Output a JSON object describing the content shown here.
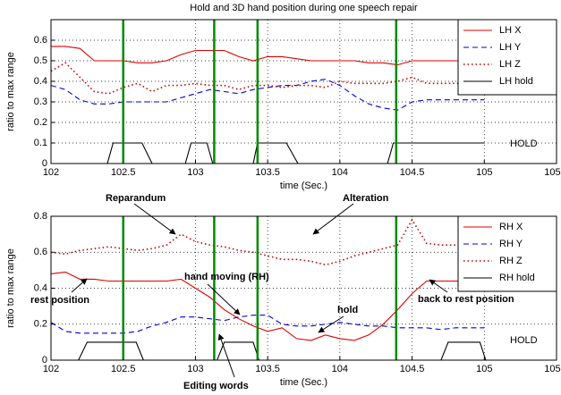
{
  "chart_data": [
    {
      "type": "line",
      "title": "Hold and 3D hand position during one speech repair",
      "xlabel": "time (Sec.)",
      "ylabel": "ratio to max range",
      "x": [
        102,
        102.1,
        102.2,
        102.3,
        102.4,
        102.5,
        102.6,
        102.7,
        102.8,
        102.9,
        103,
        103.1,
        103.2,
        103.3,
        103.4,
        103.5,
        103.6,
        103.7,
        103.8,
        103.9,
        104,
        104.1,
        104.2,
        104.3,
        104.4,
        104.5,
        104.6,
        104.7,
        104.8,
        104.9,
        105
      ],
      "xlim": [
        102,
        105.5
      ],
      "xticks": [
        102,
        102.5,
        103,
        103.5,
        104,
        104.5,
        105,
        105.5
      ],
      "ylim": [
        0,
        0.7
      ],
      "yticks": [
        0,
        0.1,
        0.2,
        0.3,
        0.4,
        0.5,
        0.6
      ],
      "grid": true,
      "legend": "upper right",
      "series": [
        {
          "name": "LH X",
          "color": "#e00000",
          "dash": "solid",
          "values": [
            0.57,
            0.57,
            0.56,
            0.5,
            0.5,
            0.5,
            0.49,
            0.49,
            0.5,
            0.53,
            0.55,
            0.55,
            0.55,
            0.52,
            0.5,
            0.52,
            0.52,
            0.51,
            0.5,
            0.5,
            0.5,
            0.5,
            0.49,
            0.49,
            0.48,
            0.5,
            0.5,
            0.5,
            0.5,
            0.5,
            0.5
          ]
        },
        {
          "name": "LH Y",
          "color": "#0000e0",
          "dash": "dashed",
          "values": [
            0.38,
            0.36,
            0.31,
            0.29,
            0.29,
            0.3,
            0.3,
            0.3,
            0.3,
            0.32,
            0.34,
            0.36,
            0.35,
            0.34,
            0.36,
            0.37,
            0.38,
            0.38,
            0.4,
            0.41,
            0.38,
            0.33,
            0.29,
            0.27,
            0.26,
            0.3,
            0.31,
            0.31,
            0.31,
            0.31,
            0.31
          ]
        },
        {
          "name": "LH Z",
          "color": "#c00000",
          "dash": "dotted",
          "values": [
            0.45,
            0.49,
            0.42,
            0.35,
            0.34,
            0.37,
            0.39,
            0.35,
            0.38,
            0.38,
            0.39,
            0.38,
            0.38,
            0.36,
            0.38,
            0.38,
            0.37,
            0.38,
            0.38,
            0.37,
            0.4,
            0.39,
            0.39,
            0.39,
            0.4,
            0.42,
            0.39,
            0.39,
            0.39,
            0.39,
            0.39
          ]
        },
        {
          "name": "LH hold",
          "color": "#000000",
          "dash": "solid",
          "x": [
            102.39,
            102.43,
            102.63,
            102.7,
            102.93,
            102.97,
            103.08,
            103.12,
            103.4,
            103.43,
            103.63,
            103.71,
            104.33,
            104.37,
            105
          ],
          "values": [
            0,
            0.1,
            0.1,
            0,
            0,
            0.1,
            0.1,
            0,
            0,
            0.1,
            0.1,
            0,
            0,
            0.1,
            0.1
          ]
        }
      ],
      "vlines": {
        "color": "#008a00",
        "x": [
          102.5,
          103.13,
          103.43,
          104.39
        ]
      },
      "annotations": [
        "HOLD"
      ]
    },
    {
      "type": "line",
      "xlabel": "time (Sec.)",
      "ylabel": "ratio to max range",
      "x": [
        102,
        102.1,
        102.2,
        102.3,
        102.4,
        102.5,
        102.6,
        102.7,
        102.8,
        102.9,
        103,
        103.1,
        103.2,
        103.3,
        103.4,
        103.5,
        103.6,
        103.7,
        103.8,
        103.9,
        104,
        104.1,
        104.2,
        104.3,
        104.4,
        104.5,
        104.6,
        104.7,
        104.8,
        104.9,
        105
      ],
      "xlim": [
        102,
        105.5
      ],
      "xticks": [
        102,
        102.5,
        103,
        103.5,
        104,
        104.5,
        105,
        105.5
      ],
      "ylim": [
        0,
        0.8
      ],
      "yticks": [
        0,
        0.2,
        0.4,
        0.6,
        0.8
      ],
      "grid": true,
      "legend": "upper right",
      "series": [
        {
          "name": "RH X",
          "color": "#e00000",
          "dash": "solid",
          "values": [
            0.48,
            0.49,
            0.45,
            0.45,
            0.44,
            0.44,
            0.44,
            0.44,
            0.44,
            0.45,
            0.4,
            0.35,
            0.28,
            0.23,
            0.19,
            0.16,
            0.18,
            0.12,
            0.11,
            0.14,
            0.12,
            0.11,
            0.14,
            0.2,
            0.28,
            0.37,
            0.44,
            0.44,
            0.44,
            0.44,
            0.44
          ]
        },
        {
          "name": "RH Y",
          "color": "#0000e0",
          "dash": "dashed",
          "values": [
            0.21,
            0.16,
            0.15,
            0.15,
            0.15,
            0.15,
            0.16,
            0.19,
            0.21,
            0.24,
            0.24,
            0.23,
            0.22,
            0.24,
            0.25,
            0.25,
            0.2,
            0.19,
            0.19,
            0.2,
            0.21,
            0.2,
            0.19,
            0.19,
            0.18,
            0.18,
            0.18,
            0.17,
            0.18,
            0.18,
            0.18
          ]
        },
        {
          "name": "RH Z",
          "color": "#c00000",
          "dash": "dotted",
          "values": [
            0.6,
            0.59,
            0.61,
            0.62,
            0.63,
            0.62,
            0.61,
            0.62,
            0.64,
            0.7,
            0.66,
            0.64,
            0.63,
            0.61,
            0.6,
            0.58,
            0.56,
            0.56,
            0.55,
            0.53,
            0.55,
            0.58,
            0.6,
            0.62,
            0.64,
            0.78,
            0.65,
            0.64,
            0.64,
            0.64,
            0.64
          ]
        },
        {
          "name": "RH hold",
          "color": "#000000",
          "dash": "solid",
          "x": [
            102.19,
            102.25,
            102.59,
            102.64,
            103.15,
            103.2,
            103.4,
            103.44,
            104.7,
            104.75,
            104.97,
            105.01
          ],
          "values": [
            0,
            0.1,
            0.1,
            0,
            0,
            0.1,
            0.1,
            0,
            0,
            0.1,
            0.1,
            0
          ]
        }
      ],
      "vlines": {
        "color": "#008a00",
        "x": [
          102.5,
          103.13,
          103.43,
          104.39
        ]
      },
      "annotations": [
        "Reparandum",
        "Alteration",
        "rest position",
        "hand moving (RH)",
        "hold",
        "back to rest position",
        "Editing words",
        "HOLD"
      ]
    }
  ]
}
